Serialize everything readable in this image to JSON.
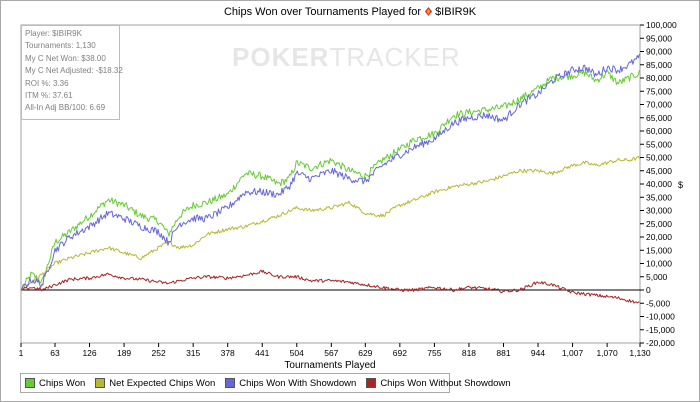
{
  "chart_data": {
    "type": "line",
    "title": "Chips Won over Tournaments Played for",
    "player_name": "$IBIR9K",
    "xlabel": "Tournaments Played",
    "ylabel": "$",
    "xlim": [
      1,
      1130
    ],
    "ylim": [
      -20000,
      100000
    ],
    "x_ticks": [
      1,
      63,
      126,
      189,
      252,
      315,
      378,
      441,
      504,
      567,
      629,
      692,
      755,
      818,
      881,
      944,
      1007,
      1070,
      1130
    ],
    "x_tick_labels": [
      "1",
      "63",
      "126",
      "189",
      "252",
      "315",
      "378",
      "441",
      "504",
      "567",
      "629",
      "692",
      "755",
      "818",
      "881",
      "944",
      "1,007",
      "1,070",
      "1,130"
    ],
    "y_ticks": [
      -20000,
      -15000,
      -10000,
      -5000,
      0,
      5000,
      10000,
      15000,
      20000,
      25000,
      30000,
      35000,
      40000,
      45000,
      50000,
      55000,
      60000,
      65000,
      70000,
      75000,
      80000,
      85000,
      90000,
      95000,
      100000
    ],
    "y_tick_labels": [
      "-20,000",
      "-15,000",
      "-10,000",
      "-5,000",
      "0",
      "5,000",
      "10,000",
      "15,000",
      "20,000",
      "25,000",
      "30,000",
      "35,000",
      "40,000",
      "45,000",
      "50,000",
      "55,000",
      "60,000",
      "65,000",
      "70,000",
      "75,000",
      "80,000",
      "85,000",
      "90,000",
      "95,000",
      "100,000"
    ],
    "grid": "horizontal",
    "legend_position": "bottom-left",
    "series": [
      {
        "name": "Chips Won",
        "color": "#66cc33",
        "x": [
          1,
          20,
          40,
          63,
          90,
          126,
          160,
          189,
          220,
          252,
          270,
          290,
          315,
          340,
          378,
          410,
          441,
          470,
          490,
          504,
          530,
          567,
          600,
          629,
          660,
          692,
          720,
          755,
          790,
          818,
          850,
          881,
          910,
          944,
          970,
          1007,
          1030,
          1050,
          1070,
          1090,
          1110,
          1130
        ],
        "y": [
          0,
          6000,
          3000,
          18000,
          22000,
          28000,
          34000,
          32000,
          28000,
          26000,
          21000,
          28000,
          32000,
          33000,
          36000,
          44000,
          43000,
          40000,
          42000,
          48000,
          46000,
          49000,
          45000,
          43000,
          49000,
          53000,
          57000,
          59000,
          66000,
          67000,
          68000,
          69000,
          72000,
          76000,
          80000,
          81000,
          82000,
          79000,
          82000,
          78000,
          80000,
          82000
        ]
      },
      {
        "name": "Net Expected Chips Won",
        "color": "#b8b832",
        "x": [
          1,
          20,
          40,
          63,
          90,
          126,
          160,
          189,
          220,
          252,
          270,
          290,
          315,
          340,
          378,
          410,
          441,
          470,
          504,
          530,
          567,
          600,
          629,
          660,
          692,
          720,
          755,
          790,
          818,
          850,
          881,
          910,
          944,
          970,
          1007,
          1030,
          1050,
          1070,
          1090,
          1110,
          1130
        ],
        "y": [
          0,
          3000,
          6000,
          10000,
          12000,
          14000,
          16000,
          14000,
          12000,
          16000,
          18000,
          16000,
          17000,
          21000,
          23000,
          24000,
          26000,
          28000,
          31000,
          30000,
          31000,
          33000,
          29000,
          28000,
          32000,
          34000,
          37000,
          39000,
          40000,
          41000,
          43000,
          45000,
          45000,
          44000,
          47000,
          48000,
          47000,
          48000,
          49000,
          49000,
          50000
        ]
      },
      {
        "name": "Chips Won With Showdown",
        "color": "#6666dd",
        "x": [
          1,
          20,
          40,
          63,
          90,
          126,
          160,
          189,
          220,
          252,
          270,
          290,
          315,
          340,
          378,
          410,
          441,
          470,
          490,
          504,
          530,
          567,
          600,
          629,
          660,
          692,
          720,
          755,
          790,
          818,
          850,
          881,
          910,
          944,
          970,
          1007,
          1030,
          1050,
          1070,
          1090,
          1110,
          1130
        ],
        "y": [
          0,
          4000,
          2000,
          15000,
          20000,
          24000,
          29000,
          27000,
          24000,
          22000,
          18000,
          25000,
          27000,
          27000,
          31000,
          37000,
          37000,
          36000,
          39000,
          44000,
          42000,
          45000,
          42000,
          41000,
          47000,
          51000,
          54000,
          57000,
          63000,
          65000,
          66000,
          64000,
          70000,
          74000,
          79000,
          83000,
          84000,
          81000,
          84000,
          83000,
          85000,
          88000
        ]
      },
      {
        "name": "Chips Won Without Showdown",
        "color": "#aa2222",
        "x": [
          1,
          20,
          40,
          63,
          90,
          126,
          160,
          189,
          220,
          252,
          270,
          290,
          315,
          340,
          378,
          410,
          441,
          470,
          504,
          530,
          567,
          600,
          629,
          660,
          692,
          720,
          755,
          790,
          818,
          850,
          881,
          910,
          944,
          970,
          1007,
          1030,
          1050,
          1070,
          1090,
          1110,
          1130
        ],
        "y": [
          0,
          1000,
          0,
          2000,
          4000,
          4500,
          6000,
          4500,
          4000,
          3000,
          2500,
          3500,
          4500,
          5000,
          4500,
          5500,
          7000,
          5000,
          5000,
          3500,
          3500,
          3000,
          2000,
          1000,
          0,
          0,
          1000,
          0,
          1000,
          500,
          -500,
          0,
          3000,
          2000,
          -1000,
          -1500,
          -2000,
          -2500,
          -3000,
          -4000,
          -5000
        ]
      }
    ]
  },
  "stats": {
    "player": "Player: $IBIR9K",
    "tournaments": "Tournaments: 1,130",
    "net_won": "My C Net Won: $38.00",
    "net_adjusted": "My C Net Adjusted: -$18.32",
    "roi": "ROI %: 3.36",
    "itm": "ITM %: 37.61",
    "allin": "All-In Adj BB/100: 6.69"
  },
  "watermark": {
    "brand_part1": "POKER",
    "brand_part2": "TRACKER"
  },
  "legend": {
    "items": [
      {
        "label": "Chips Won",
        "color": "#66cc33"
      },
      {
        "label": "Net Expected Chips Won",
        "color": "#b8b832"
      },
      {
        "label": "Chips Won With Showdown",
        "color": "#6666dd"
      },
      {
        "label": "Chips Won Without Showdown",
        "color": "#aa2222"
      }
    ]
  },
  "icons": {
    "title_icon": "poker-stars-icon"
  }
}
